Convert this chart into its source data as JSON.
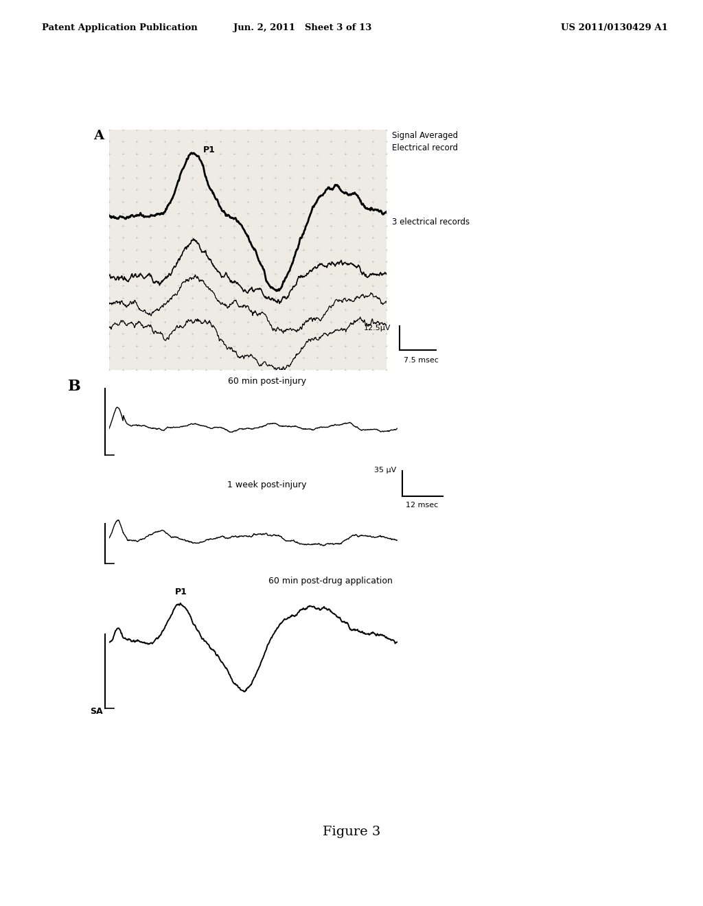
{
  "bg_color": "#ffffff",
  "header_left": "Patent Application Publication",
  "header_mid": "Jun. 2, 2011   Sheet 3 of 13",
  "header_right": "US 2011/0130429 A1",
  "figure_caption": "Figure 3",
  "panel_A_label": "A",
  "panel_B_label": "B",
  "panel_A_annot_P1": "P1",
  "panel_A_right_label1": "Signal Averaged",
  "panel_A_right_label2": "Electrical record",
  "panel_A_right_label3": "3 electrical records",
  "panel_A_scale_v": "12.5μV",
  "panel_A_scale_t": "7.5 msec",
  "panel_B_label1": "60 min post-injury",
  "panel_B_label2": "1 week post-injury",
  "panel_B_label3": "60 min post-drug application",
  "panel_B_P1": "P1",
  "panel_B_SA": "SA",
  "panel_B_scale_v": "35 μV",
  "panel_B_scale_t": "12 msec"
}
